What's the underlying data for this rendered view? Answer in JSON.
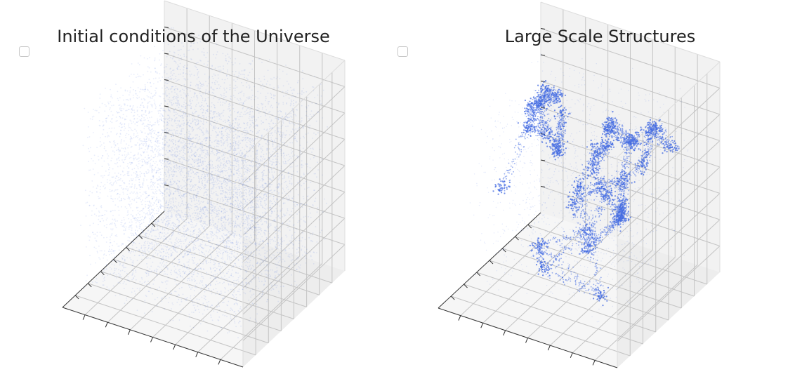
{
  "chart_data": [
    {
      "type": "scatter",
      "projection": "3d",
      "title": "Initial conditions of the Universe",
      "legend": {
        "placement": "top-left",
        "entries": [
          ""
        ]
      },
      "series": [
        {
          "color": "#4169e1",
          "distribution": "uniform-dense",
          "opacity": "low"
        }
      ],
      "grid": true,
      "tick_labels": false
    },
    {
      "type": "scatter",
      "projection": "3d",
      "title": "Large Scale Structures",
      "legend": {
        "placement": "top-left",
        "entries": [
          ""
        ]
      },
      "series": [
        {
          "color": "#4169e1",
          "distribution": "filamentary-web",
          "opacity": "medium"
        }
      ],
      "grid": true,
      "tick_labels": false
    }
  ],
  "colors": {
    "point": "#4169e1",
    "pane_left": "#ededed",
    "pane_right": "#f2f2f2",
    "pane_floor": "#f6f6f6",
    "grid": "#c4c4c4",
    "edge": "#333333"
  }
}
